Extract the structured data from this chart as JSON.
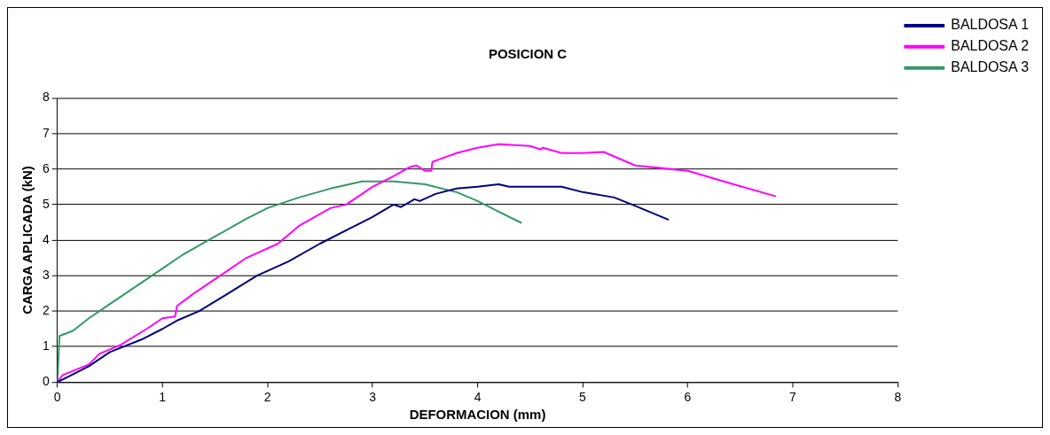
{
  "chart_data": {
    "type": "line",
    "title": "POSICION C",
    "xlabel": "DEFORMACION (mm)",
    "ylabel": "CARGA APLICADA (kN)",
    "xlim": [
      0,
      8
    ],
    "xticks": [
      0,
      1,
      2,
      3,
      4,
      5,
      6,
      7,
      8
    ],
    "ylim": [
      0,
      8
    ],
    "yticks": [
      0,
      1,
      2,
      3,
      4,
      5,
      6,
      7,
      8
    ],
    "grid": "y",
    "legend": "top right",
    "marker": "none",
    "line_style": "solid",
    "series": [
      {
        "name": "BALDOSA 1",
        "color": "#000080",
        "x": [
          0,
          0.3,
          0.5,
          0.8,
          1,
          1.15,
          1.35,
          1.6,
          1.9,
          2.2,
          2.5,
          2.8,
          3,
          3.2,
          3.27,
          3.4,
          3.45,
          3.6,
          3.8,
          4,
          4.2,
          4.3,
          4.5,
          4.8,
          5,
          5.3,
          5.47,
          5.82
        ],
        "values": [
          0,
          0.45,
          0.85,
          1.2,
          1.5,
          1.75,
          2,
          2.45,
          3,
          3.4,
          3.9,
          4.35,
          4.65,
          5,
          4.93,
          5.15,
          5.1,
          5.3,
          5.45,
          5.5,
          5.57,
          5.5,
          5.5,
          5.5,
          5.35,
          5.2,
          5,
          4.57
        ]
      },
      {
        "name": "BALDOSA 2",
        "color": "#ff00ff",
        "x": [
          0,
          0.05,
          0.3,
          0.4,
          0.6,
          0.85,
          1,
          1.12,
          1.14,
          1.3,
          1.5,
          1.8,
          2.1,
          2.3,
          2.6,
          2.75,
          3,
          3.2,
          3.35,
          3.42,
          3.5,
          3.56,
          3.57,
          3.8,
          4,
          4.2,
          4.5,
          4.6,
          4.62,
          4.8,
          5,
          5.2,
          5.5,
          6,
          6.4,
          6.84
        ],
        "values": [
          0,
          0.2,
          0.5,
          0.8,
          1.05,
          1.5,
          1.8,
          1.85,
          2.15,
          2.5,
          2.9,
          3.5,
          3.9,
          4.4,
          4.9,
          5,
          5.5,
          5.8,
          6.05,
          6.1,
          5.95,
          5.95,
          6.2,
          6.45,
          6.6,
          6.7,
          6.65,
          6.55,
          6.6,
          6.45,
          6.45,
          6.48,
          6.1,
          5.95,
          5.6,
          5.23
        ]
      },
      {
        "name": "BALDOSA 3",
        "color": "#339966",
        "x": [
          0,
          0.02,
          0.15,
          0.3,
          0.5,
          0.8,
          1,
          1.2,
          1.5,
          1.8,
          2,
          2.3,
          2.6,
          2.9,
          3.2,
          3.5,
          3.8,
          4,
          4.2,
          4.42
        ],
        "values": [
          0,
          1.3,
          1.45,
          1.8,
          2.2,
          2.8,
          3.2,
          3.6,
          4.1,
          4.6,
          4.9,
          5.2,
          5.45,
          5.65,
          5.65,
          5.57,
          5.35,
          5.1,
          4.8,
          4.48
        ]
      }
    ]
  }
}
